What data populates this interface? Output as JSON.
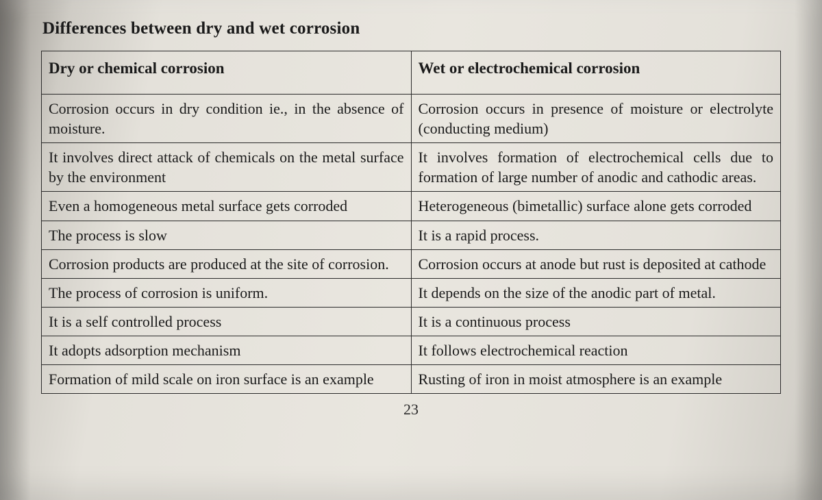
{
  "title": "Differences between dry and wet corrosion",
  "page_number": "23",
  "table": {
    "type": "table",
    "border_color": "#2a2a2a",
    "background_color": "transparent",
    "text_color": "#1a1a1a",
    "font_family": "Times New Roman",
    "header_fontsize_pt": 17,
    "cell_fontsize_pt": 16,
    "column_widths_pct": [
      50,
      50
    ],
    "columns": [
      "Dry or chemical corrosion",
      "Wet or electrochemical corrosion"
    ],
    "rows": [
      {
        "left": "Corrosion occurs in dry condition ie., in the absence of moisture.",
        "right": "Corrosion occurs in presence of moisture or electrolyte (conducting medium)",
        "justify": true
      },
      {
        "left": "It involves direct attack of chemicals on the metal surface by the environment",
        "right": "It involves formation of electrochemical cells due to formation of large number of anodic and cathodic areas.",
        "justify": true
      },
      {
        "left": "Even a homogeneous metal surface gets corroded",
        "right": "Heterogeneous (bimetallic) surface alone gets corroded",
        "justify": true
      },
      {
        "left": "The process is slow",
        "right": "It is a rapid process.",
        "justify": false
      },
      {
        "left": "Corrosion products are produced at the site of corrosion.",
        "right": "Corrosion occurs at anode but rust is deposited at cathode",
        "justify": true
      },
      {
        "left": "The process of corrosion is uniform.",
        "right": "It depends on the size of the anodic part of metal.",
        "justify": true
      },
      {
        "left": "It is a self controlled process",
        "right": "It is a continuous process",
        "justify": false
      },
      {
        "left": "It adopts adsorption mechanism",
        "right": "It follows electrochemical reaction",
        "justify": false
      },
      {
        "left": "Formation of mild scale on iron surface is an example",
        "right": "Rusting of iron in moist atmosphere is an example",
        "justify": true
      }
    ]
  },
  "styling": {
    "page_bg_gradient": [
      "#9a9690",
      "#cfccc5",
      "#e4e1da",
      "#e9e6df",
      "#e4e1da",
      "#d3d0c9",
      "#b9b6af"
    ],
    "title_fontsize_pt": 19,
    "title_weight": 700
  }
}
